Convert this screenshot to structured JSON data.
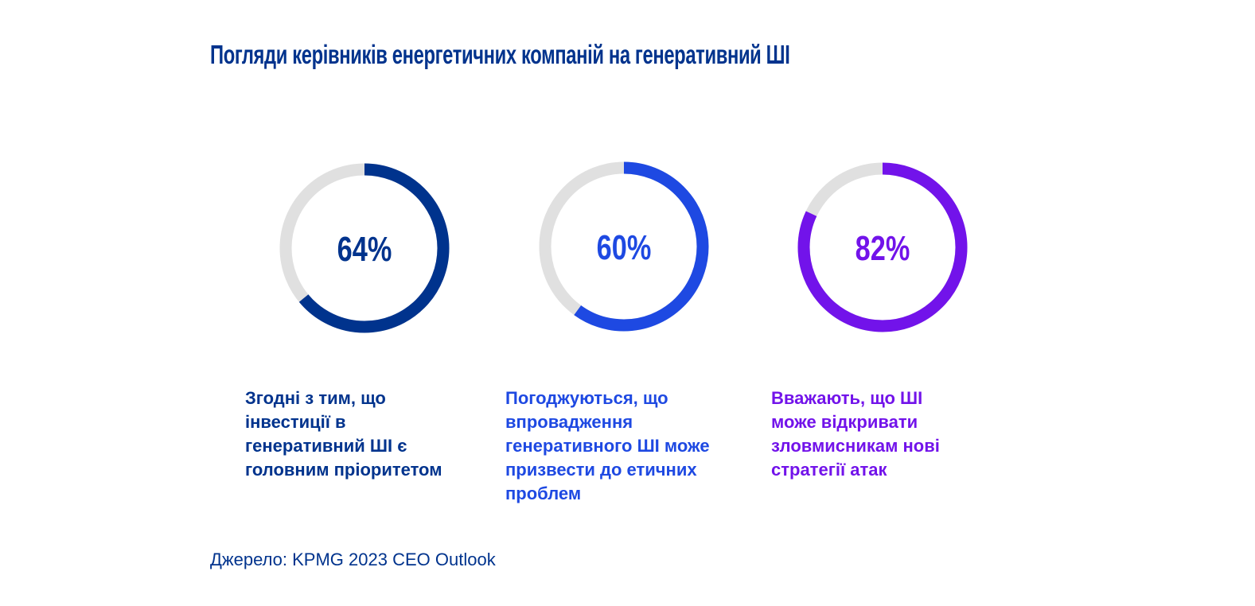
{
  "chart_data": {
    "type": "donut",
    "title": "Погляди керівників енергетичних компаній на генеративний ШІ",
    "items": [
      {
        "value": 64,
        "display": "64%",
        "label": "Згодні з тим, що інвестиції в генеративний ШІ є головним пріоритетом",
        "label_lines": [
          "Згодні з тим, що",
          "інвестиції в",
          "генеративний ШІ є",
          "головним пріоритетом"
        ],
        "color": "#00338D"
      },
      {
        "value": 60,
        "display": "60%",
        "label": "Погоджуються, що впровадження генеративного ШІ може призвести до етичних проблем",
        "label_lines": [
          "Погоджуються, що",
          "впровадження",
          "генеративного ШІ може",
          "призвести до етичних",
          "проблем"
        ],
        "color": "#1E49E2"
      },
      {
        "value": 82,
        "display": "82%",
        "label": "Вважають, що ШІ може відкривати зловмисникам нові стратегії атак",
        "label_lines": [
          "Вважають, що ШІ",
          "може відкривати",
          "зловмисникам нові",
          "стратегії атак"
        ],
        "color": "#7213EA"
      }
    ],
    "track_color": "#E0E0E0",
    "source": "Джерело: KPMG 2023 CEO Outlook"
  }
}
